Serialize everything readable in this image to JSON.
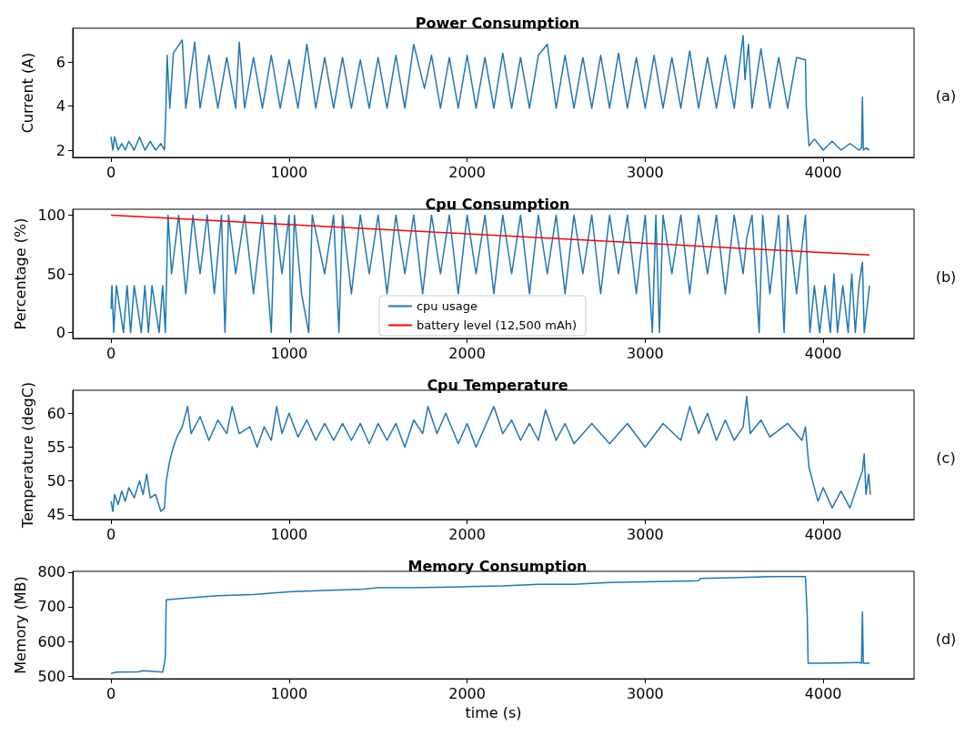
{
  "chart_data": [
    {
      "type": "line",
      "title": "Power Consumption",
      "ylabel": "Current (A)",
      "annotations": [
        "(a)"
      ],
      "xlim": [
        -215,
        4510
      ],
      "xticks": [
        0,
        1000,
        2000,
        3000,
        4000
      ],
      "ylim": [
        1.67,
        7.53
      ],
      "yticks": [
        2,
        4,
        6
      ],
      "grid": false,
      "legend": false,
      "series": [
        {
          "color": "#1f77b4",
          "x": [
            0,
            10,
            20,
            40,
            60,
            80,
            100,
            130,
            160,
            190,
            220,
            250,
            280,
            300,
            308,
            315,
            330,
            350,
            400,
            420,
            470,
            500,
            550,
            600,
            650,
            700,
            720,
            750,
            800,
            850,
            900,
            950,
            1000,
            1050,
            1100,
            1150,
            1200,
            1250,
            1300,
            1350,
            1400,
            1450,
            1500,
            1550,
            1600,
            1650,
            1700,
            1760,
            1800,
            1850,
            1900,
            1950,
            2000,
            2050,
            2100,
            2150,
            2200,
            2250,
            2300,
            2350,
            2400,
            2450,
            2500,
            2550,
            2600,
            2650,
            2700,
            2750,
            2800,
            2850,
            2900,
            2950,
            3000,
            3050,
            3100,
            3150,
            3200,
            3250,
            3300,
            3350,
            3400,
            3450,
            3500,
            3550,
            3560,
            3580,
            3600,
            3650,
            3700,
            3750,
            3800,
            3850,
            3900,
            3905,
            3920,
            3950,
            4000,
            4050,
            4100,
            4150,
            4200,
            4215,
            4220,
            4225,
            4240,
            4260
          ],
          "values": [
            2.6,
            2.0,
            2.6,
            2.0,
            2.3,
            2.0,
            2.4,
            2.0,
            2.6,
            2.0,
            2.4,
            2.0,
            2.3,
            2.0,
            3.8,
            6.3,
            3.9,
            6.4,
            7.0,
            3.9,
            6.9,
            3.9,
            6.3,
            3.9,
            6.2,
            3.9,
            6.9,
            3.9,
            6.2,
            3.9,
            6.3,
            3.9,
            6.1,
            3.9,
            6.8,
            3.9,
            6.2,
            3.9,
            6.2,
            3.9,
            6.1,
            3.9,
            6.2,
            3.9,
            6.3,
            3.9,
            6.8,
            4.8,
            6.3,
            3.9,
            6.2,
            3.9,
            6.3,
            3.9,
            6.2,
            3.9,
            6.4,
            3.9,
            6.2,
            3.9,
            6.3,
            6.8,
            3.9,
            6.3,
            3.9,
            6.2,
            3.9,
            6.3,
            3.9,
            6.4,
            3.9,
            6.2,
            3.9,
            6.3,
            3.9,
            6.2,
            3.9,
            6.5,
            3.9,
            6.2,
            3.9,
            6.3,
            3.9,
            7.2,
            5.2,
            6.8,
            3.9,
            6.6,
            3.9,
            6.2,
            3.9,
            6.2,
            6.1,
            3.9,
            2.2,
            2.5,
            2.0,
            2.4,
            2.0,
            2.3,
            2.0,
            2.1,
            4.4,
            2.0,
            2.1,
            2.0
          ]
        }
      ]
    },
    {
      "type": "line",
      "title": "Cpu Consumption",
      "ylabel": "Percentage (%)",
      "annotations": [
        "(b)"
      ],
      "xlim": [
        -215,
        4510
      ],
      "xticks": [
        0,
        1000,
        2000,
        3000,
        4000
      ],
      "ylim": [
        -5,
        105
      ],
      "yticks": [
        0,
        50,
        100
      ],
      "grid": false,
      "legend": "bottom",
      "series": [
        {
          "name": "cpu usage",
          "color": "#1f77b4",
          "x": [
            0,
            5,
            15,
            30,
            50,
            70,
            90,
            110,
            130,
            150,
            170,
            190,
            210,
            230,
            250,
            270,
            290,
            305,
            315,
            320,
            340,
            380,
            420,
            460,
            500,
            540,
            580,
            620,
            640,
            660,
            700,
            750,
            800,
            850,
            900,
            920,
            960,
            1000,
            1010,
            1030,
            1070,
            1110,
            1130,
            1200,
            1250,
            1280,
            1300,
            1350,
            1400,
            1450,
            1500,
            1550,
            1600,
            1650,
            1700,
            1750,
            1800,
            1850,
            1900,
            1950,
            2000,
            2050,
            2100,
            2150,
            2200,
            2250,
            2300,
            2350,
            2400,
            2450,
            2500,
            2550,
            2600,
            2650,
            2700,
            2750,
            2800,
            2850,
            2900,
            2950,
            3000,
            3040,
            3060,
            3080,
            3100,
            3150,
            3200,
            3250,
            3300,
            3350,
            3400,
            3450,
            3500,
            3550,
            3570,
            3600,
            3640,
            3660,
            3700,
            3750,
            3780,
            3800,
            3850,
            3900,
            3915,
            3925,
            3950,
            3980,
            4010,
            4040,
            4060,
            4080,
            4110,
            4140,
            4160,
            4180,
            4200,
            4220,
            4230,
            4260
          ],
          "values": [
            20,
            40,
            0,
            40,
            20,
            0,
            40,
            0,
            40,
            20,
            0,
            40,
            0,
            40,
            20,
            0,
            40,
            0,
            67,
            100,
            50,
            100,
            33,
            100,
            50,
            100,
            33,
            100,
            0,
            100,
            50,
            100,
            33,
            100,
            0,
            100,
            50,
            100,
            0,
            100,
            33,
            0,
            100,
            50,
            100,
            0,
            100,
            33,
            100,
            50,
            100,
            33,
            100,
            50,
            100,
            33,
            100,
            50,
            100,
            33,
            100,
            50,
            100,
            33,
            100,
            50,
            100,
            33,
            100,
            50,
            100,
            33,
            100,
            50,
            100,
            33,
            100,
            50,
            100,
            33,
            100,
            0,
            100,
            0,
            100,
            50,
            100,
            33,
            100,
            50,
            100,
            33,
            100,
            50,
            80,
            100,
            0,
            100,
            33,
            100,
            0,
            100,
            33,
            100,
            40,
            0,
            40,
            0,
            40,
            0,
            50,
            0,
            40,
            0,
            50,
            0,
            40,
            60,
            0,
            40
          ]
        },
        {
          "name": "battery level (12,500 mAh)",
          "color": "#ff0000",
          "x": [
            0,
            4260
          ],
          "values": [
            100,
            66
          ]
        }
      ]
    },
    {
      "type": "line",
      "title": "Cpu Temperature",
      "ylabel": "Temperature (degC)",
      "annotations": [
        "(c)"
      ],
      "xlim": [
        -215,
        4510
      ],
      "xticks": [
        0,
        1000,
        2000,
        3000,
        4000
      ],
      "ylim": [
        44.3,
        63.4
      ],
      "yticks": [
        45,
        50,
        55,
        60
      ],
      "grid": false,
      "legend": false,
      "series": [
        {
          "color": "#1f77b4",
          "x": [
            0,
            10,
            20,
            40,
            60,
            80,
            100,
            130,
            160,
            180,
            200,
            220,
            250,
            280,
            300,
            310,
            330,
            350,
            370,
            400,
            430,
            450,
            500,
            550,
            600,
            650,
            680,
            720,
            780,
            820,
            860,
            900,
            930,
            960,
            1000,
            1050,
            1100,
            1150,
            1200,
            1250,
            1300,
            1350,
            1400,
            1450,
            1500,
            1550,
            1600,
            1650,
            1700,
            1750,
            1780,
            1830,
            1880,
            1950,
            2000,
            2050,
            2100,
            2150,
            2200,
            2250,
            2300,
            2350,
            2400,
            2440,
            2500,
            2550,
            2600,
            2700,
            2800,
            2900,
            3000,
            3100,
            3200,
            3250,
            3300,
            3350,
            3400,
            3450,
            3500,
            3550,
            3570,
            3590,
            3650,
            3700,
            3800,
            3880,
            3900,
            3920,
            3940,
            3970,
            4000,
            4050,
            4100,
            4150,
            4200,
            4220,
            4230,
            4240,
            4255,
            4265
          ],
          "values": [
            47,
            45.5,
            48,
            46.5,
            48.5,
            47,
            49,
            47.5,
            50,
            48,
            51,
            47.5,
            48,
            45.5,
            46,
            50,
            53,
            55,
            56.5,
            58,
            61,
            57,
            59.5,
            56,
            59,
            57,
            61,
            57,
            58,
            55,
            58,
            56,
            61,
            57,
            60,
            56.5,
            59,
            56,
            58.5,
            56,
            58.5,
            56,
            58.5,
            55.5,
            58.5,
            56,
            58.5,
            55,
            59,
            57,
            61,
            57,
            60,
            55.5,
            58.5,
            55,
            58,
            61,
            57,
            59,
            56,
            58.5,
            56,
            60.5,
            56,
            58.5,
            55.5,
            58.5,
            55.5,
            58.5,
            55,
            58.5,
            56,
            61,
            57,
            60,
            56,
            59,
            56,
            58,
            62.5,
            57,
            59,
            56.5,
            58.5,
            56,
            58,
            52,
            50,
            47,
            49,
            46,
            48.5,
            46,
            50,
            51.5,
            54,
            48,
            51,
            48
          ]
        }
      ]
    },
    {
      "type": "line",
      "title": "Memory Consumption",
      "ylabel": "Memory (MB)",
      "xlabel": "time (s)",
      "annotations": [
        "(d)"
      ],
      "xlim": [
        -215,
        4510
      ],
      "xticks": [
        0,
        1000,
        2000,
        3000,
        4000
      ],
      "ylim": [
        493,
        802
      ],
      "yticks": [
        500,
        600,
        700,
        800
      ],
      "grid": false,
      "legend": false,
      "series": [
        {
          "color": "#1f77b4",
          "x": [
            0,
            30,
            150,
            180,
            290,
            300,
            305,
            310,
            400,
            500,
            600,
            800,
            1000,
            1200,
            1400,
            1500,
            1700,
            2000,
            2200,
            2400,
            2600,
            2800,
            3000,
            3300,
            3310,
            3500,
            3700,
            3900,
            3910,
            3915,
            4000,
            4200,
            4215,
            4220,
            4225,
            4260
          ],
          "values": [
            508,
            512,
            513,
            516,
            512,
            538,
            560,
            720,
            724,
            728,
            732,
            735,
            743,
            747,
            750,
            755,
            755,
            758,
            760,
            765,
            765,
            770,
            772,
            775,
            782,
            784,
            787,
            787,
            675,
            538,
            538,
            540,
            538,
            685,
            538,
            538
          ]
        }
      ]
    }
  ]
}
